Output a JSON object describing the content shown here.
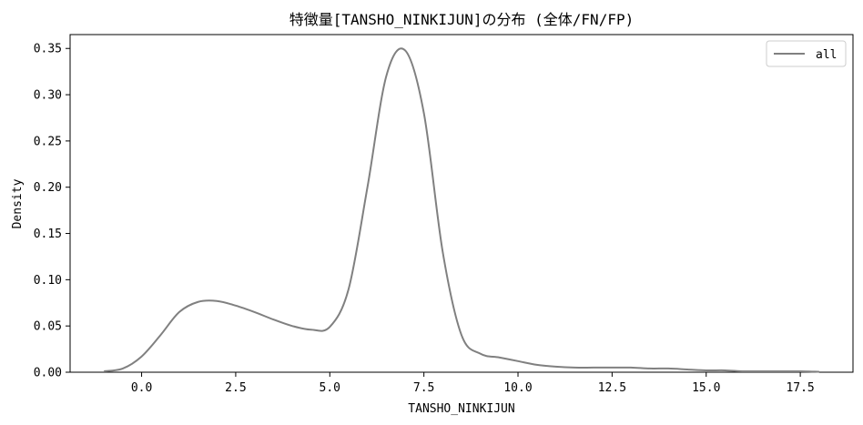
{
  "chart_data": {
    "type": "line",
    "title": "特徴量[TANSHO_NINKIJUN]の分布 (全体/FN/FP)",
    "xlabel": "TANSHO_NINKIJUN",
    "ylabel": "Density",
    "xlim": [
      -1.9,
      18.9
    ],
    "ylim": [
      0.0,
      0.365
    ],
    "xticks": [
      0.0,
      2.5,
      5.0,
      7.5,
      10.0,
      12.5,
      15.0,
      17.5
    ],
    "xtick_labels": [
      "0.0",
      "2.5",
      "5.0",
      "7.5",
      "10.0",
      "12.5",
      "15.0",
      "17.5"
    ],
    "yticks": [
      0.0,
      0.05,
      0.1,
      0.15,
      0.2,
      0.25,
      0.3,
      0.35
    ],
    "ytick_labels": [
      "0.00",
      "0.05",
      "0.10",
      "0.15",
      "0.20",
      "0.25",
      "0.30",
      "0.35"
    ],
    "grid": false,
    "legend_position": "top-right",
    "series": [
      {
        "name": "all",
        "color": "#808080",
        "x": [
          -1.0,
          -0.5,
          0.0,
          0.5,
          1.0,
          1.5,
          2.0,
          2.5,
          3.0,
          3.5,
          4.0,
          4.5,
          5.0,
          5.5,
          6.0,
          6.5,
          7.0,
          7.5,
          8.0,
          8.5,
          9.0,
          9.5,
          10.0,
          10.5,
          11.0,
          11.5,
          12.0,
          12.5,
          13.0,
          13.5,
          14.0,
          14.5,
          15.0,
          15.5,
          16.0,
          16.5,
          17.0,
          17.5,
          18.0
        ],
        "y": [
          0.001,
          0.004,
          0.017,
          0.04,
          0.065,
          0.076,
          0.077,
          0.072,
          0.065,
          0.057,
          0.05,
          0.046,
          0.049,
          0.09,
          0.2,
          0.32,
          0.348,
          0.28,
          0.13,
          0.04,
          0.02,
          0.016,
          0.012,
          0.008,
          0.006,
          0.005,
          0.005,
          0.005,
          0.005,
          0.004,
          0.004,
          0.003,
          0.002,
          0.002,
          0.001,
          0.001,
          0.001,
          0.001,
          0.0005
        ]
      }
    ]
  }
}
